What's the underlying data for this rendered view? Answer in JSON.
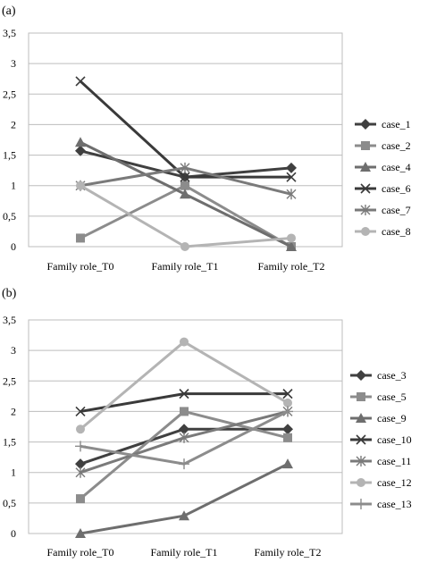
{
  "chart_data": [
    {
      "panel_label": "(a)",
      "type": "line",
      "categories": [
        "Family role_T0",
        "Family role_T1",
        "Family role_T2"
      ],
      "ylim": [
        0,
        3.5
      ],
      "yticks": [
        "0",
        "0,5",
        "1",
        "1,5",
        "2",
        "2,5",
        "3",
        "3,5"
      ],
      "grid": true,
      "legend_position": "right",
      "series": [
        {
          "name": "case_1",
          "values": [
            1.57,
            1.14,
            1.29
          ],
          "color": "#404040",
          "marker": "diamond"
        },
        {
          "name": "case_2",
          "values": [
            0.14,
            1.0,
            0.0
          ],
          "color": "#8c8c8c",
          "marker": "square"
        },
        {
          "name": "case_4",
          "values": [
            1.71,
            0.86,
            0.0
          ],
          "color": "#6e6e6e",
          "marker": "triangle"
        },
        {
          "name": "case_6",
          "values": [
            2.71,
            1.14,
            1.14
          ],
          "color": "#3a3a3a",
          "marker": "x"
        },
        {
          "name": "case_7",
          "values": [
            1.0,
            1.29,
            0.86
          ],
          "color": "#7a7a7a",
          "marker": "star"
        },
        {
          "name": "case_8",
          "values": [
            1.0,
            0.0,
            0.14
          ],
          "color": "#b4b4b4",
          "marker": "circle"
        }
      ]
    },
    {
      "panel_label": "(b)",
      "type": "line",
      "categories": [
        "Family role_T0",
        "Family role_T1",
        "Family role_T2"
      ],
      "ylim": [
        0,
        3.5
      ],
      "yticks": [
        "0",
        "0,5",
        "1",
        "1,5",
        "2",
        "2,5",
        "3",
        "3,5"
      ],
      "grid": true,
      "legend_position": "right",
      "series": [
        {
          "name": "case_3",
          "values": [
            1.14,
            1.71,
            1.71
          ],
          "color": "#404040",
          "marker": "diamond"
        },
        {
          "name": "case_5",
          "values": [
            0.57,
            2.0,
            1.57
          ],
          "color": "#8c8c8c",
          "marker": "square"
        },
        {
          "name": "case_9",
          "values": [
            0.0,
            0.29,
            1.14
          ],
          "color": "#6e6e6e",
          "marker": "triangle"
        },
        {
          "name": "case_10",
          "values": [
            2.0,
            2.29,
            2.29
          ],
          "color": "#3a3a3a",
          "marker": "x"
        },
        {
          "name": "case_11",
          "values": [
            1.0,
            1.57,
            2.0
          ],
          "color": "#7a7a7a",
          "marker": "star"
        },
        {
          "name": "case_12",
          "values": [
            1.71,
            3.14,
            2.14
          ],
          "color": "#b4b4b4",
          "marker": "circle"
        },
        {
          "name": "case_13",
          "values": [
            1.43,
            1.14,
            2.0
          ],
          "color": "#8c8c8c",
          "marker": "plus"
        }
      ]
    }
  ]
}
